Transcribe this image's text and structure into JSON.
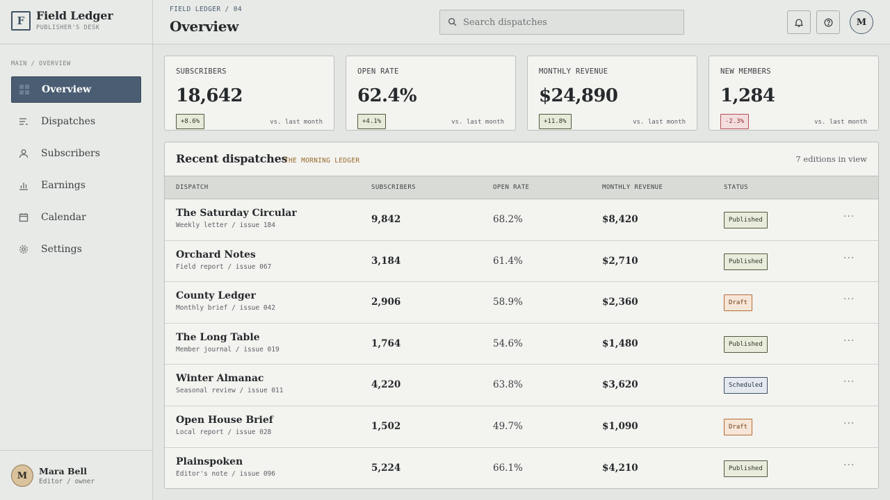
{
  "brand": {
    "mark": "F",
    "title": "Field Ledger",
    "subtitle": "PUBLISHER'S DESK"
  },
  "sidebar": {
    "section_label": "MAIN / OVERVIEW",
    "items": [
      {
        "label": "Overview",
        "icon": "grid-icon",
        "active": true
      },
      {
        "label": "Dispatches",
        "icon": "list-icon"
      },
      {
        "label": "Subscribers",
        "icon": "user-icon"
      },
      {
        "label": "Earnings",
        "icon": "bar-chart-icon"
      },
      {
        "label": "Calendar",
        "icon": "calendar-icon"
      },
      {
        "label": "Settings",
        "icon": "gear-icon"
      }
    ]
  },
  "user": {
    "initial": "M",
    "name": "Mara Bell",
    "role": "Editor / owner"
  },
  "header": {
    "breadcrumb": "FIELD LEDGER / 04",
    "title": "Overview",
    "search_placeholder": "Search dispatches",
    "avatar_initial": "M"
  },
  "kpis": [
    {
      "label": "SUBSCRIBERS",
      "value": "18,642",
      "delta": "+8.6%",
      "trend": "up",
      "compare": "vs. last month"
    },
    {
      "label": "OPEN RATE",
      "value": "62.4%",
      "delta": "+4.1%",
      "trend": "up",
      "compare": "vs. last month"
    },
    {
      "label": "MONTHLY REVENUE",
      "value": "$24,890",
      "delta": "+11.8%",
      "trend": "up",
      "compare": "vs. last month"
    },
    {
      "label": "NEW MEMBERS",
      "value": "1,284",
      "delta": "-2.3%",
      "trend": "down",
      "compare": "vs. last month"
    }
  ],
  "table": {
    "title": "Recent dispatches",
    "tag": "THE MORNING LEDGER",
    "count_text": "7 editions in view",
    "columns": [
      "DISPATCH",
      "SUBSCRIBERS",
      "OPEN RATE",
      "MONTHLY REVENUE",
      "STATUS"
    ],
    "rows": [
      {
        "name": "The Saturday Circular",
        "sub": "Weekly letter / issue 184",
        "subscribers": "9,842",
        "open_rate": "68.2%",
        "revenue": "$8,420",
        "status": "Published"
      },
      {
        "name": "Orchard Notes",
        "sub": "Field report / issue 067",
        "subscribers": "3,184",
        "open_rate": "61.4%",
        "revenue": "$2,710",
        "status": "Published"
      },
      {
        "name": "County Ledger",
        "sub": "Monthly brief / issue 042",
        "subscribers": "2,906",
        "open_rate": "58.9%",
        "revenue": "$2,360",
        "status": "Draft"
      },
      {
        "name": "The Long Table",
        "sub": "Member journal / issue 019",
        "subscribers": "1,764",
        "open_rate": "54.6%",
        "revenue": "$1,480",
        "status": "Published"
      },
      {
        "name": "Winter Almanac",
        "sub": "Seasonal review / issue 011",
        "subscribers": "4,220",
        "open_rate": "63.8%",
        "revenue": "$3,620",
        "status": "Scheduled"
      },
      {
        "name": "Open House Brief",
        "sub": "Local report / issue 028",
        "subscribers": "1,502",
        "open_rate": "49.7%",
        "revenue": "$1,090",
        "status": "Draft"
      },
      {
        "name": "Plainspoken",
        "sub": "Editor's note / issue 096",
        "subscribers": "5,224",
        "open_rate": "66.1%",
        "revenue": "$4,210",
        "status": "Published"
      }
    ],
    "more_label": "···"
  },
  "colors": {
    "accent": "#4a5d72",
    "tag": "#9a6a2c",
    "positive": "#4b5a3a",
    "negative": "#b0515a",
    "draft": "#b36a33"
  }
}
